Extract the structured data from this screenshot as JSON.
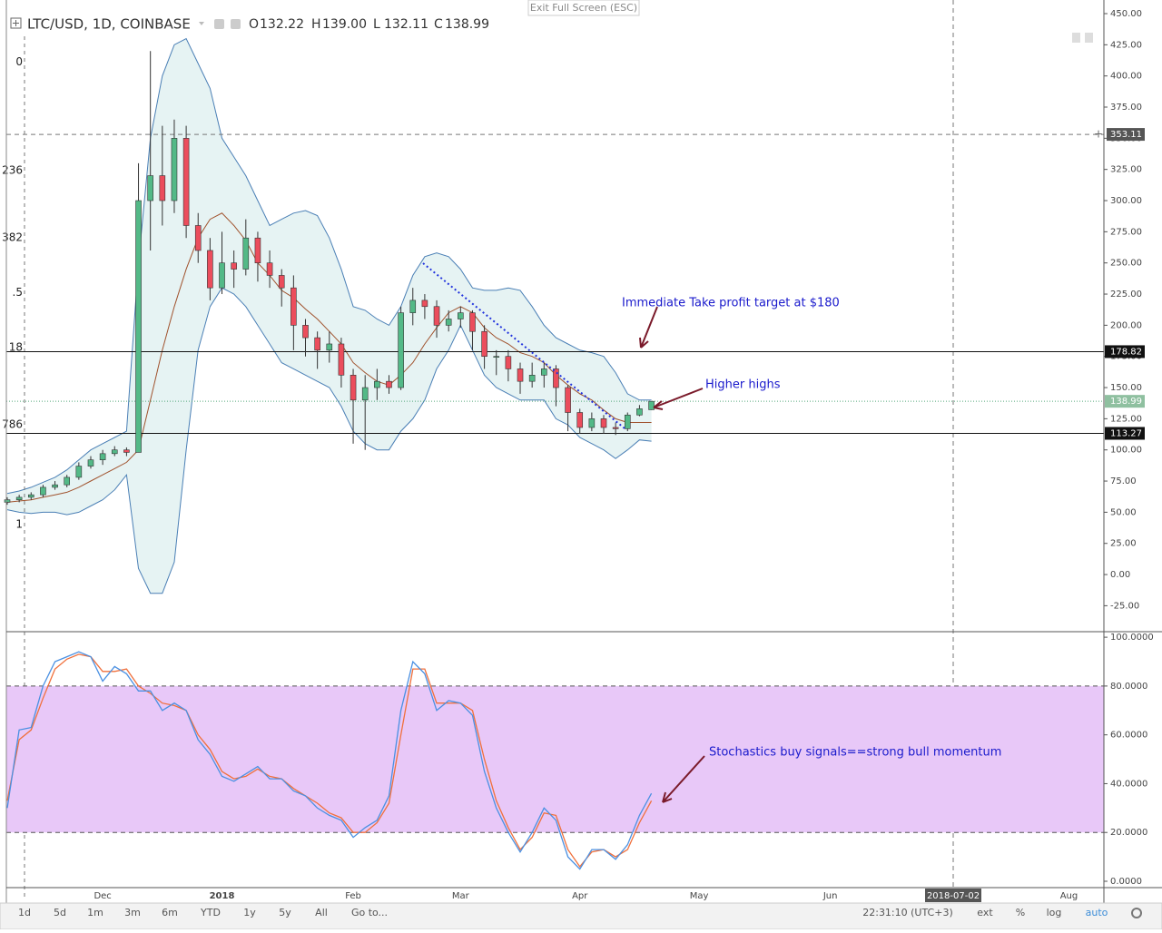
{
  "ui": {
    "exit_full_screen": "Exit Full Screen (ESC)",
    "symbol": "LTC/USD, 1D, COINBASE",
    "ohlc": [
      {
        "label": "O",
        "text": "132.22"
      },
      {
        "label": "H",
        "text": "139.00"
      },
      {
        "label": "L",
        "text": "132.11"
      },
      {
        "label": "C",
        "text": "138.99"
      }
    ],
    "range_buttons": [
      "1d",
      "5d",
      "1m",
      "3m",
      "6m",
      "YTD",
      "1y",
      "5y",
      "All",
      "Go to..."
    ],
    "clock": "22:31:10 (UTC+3)",
    "scale_buttons": [
      "ext",
      "%",
      "log",
      "auto"
    ]
  },
  "chart_data": [
    {
      "type": "candlestick",
      "categories": [
        null,
        null,
        null,
        null,
        null,
        null,
        null,
        null,
        "Dec",
        null,
        null,
        null,
        null,
        null,
        null,
        null,
        null,
        null,
        "2018",
        null,
        null,
        null,
        null,
        null,
        null,
        null,
        null,
        null,
        null,
        "Feb",
        null,
        null,
        null,
        null,
        null,
        null,
        null,
        null,
        "Mar",
        null,
        null,
        null,
        null,
        null,
        null,
        null,
        null,
        null,
        "Apr",
        null,
        null,
        null,
        null,
        null,
        null
      ],
      "future_months": [
        "May",
        "Jun",
        "Aug"
      ],
      "crosshair_date": "2018-07-02",
      "open": [
        58,
        60,
        62,
        64,
        70,
        72,
        78,
        87,
        92,
        97,
        100,
        98,
        300,
        320,
        300,
        350,
        280,
        260,
        230,
        250,
        245,
        270,
        250,
        240,
        230,
        200,
        190,
        180,
        185,
        160,
        140,
        150,
        155,
        150,
        210,
        220,
        215,
        200,
        205,
        210,
        195,
        175,
        175,
        165,
        155,
        160,
        165,
        150,
        130,
        118,
        125,
        118,
        117,
        128,
        132.22
      ],
      "high": [
        62,
        64,
        66,
        72,
        75,
        80,
        90,
        95,
        100,
        103,
        102,
        330,
        420,
        360,
        365,
        360,
        290,
        270,
        275,
        260,
        285,
        275,
        260,
        245,
        240,
        205,
        195,
        195,
        190,
        165,
        160,
        165,
        160,
        215,
        230,
        225,
        220,
        212,
        215,
        212,
        200,
        180,
        180,
        170,
        170,
        170,
        168,
        152,
        133,
        130,
        128,
        122,
        130,
        136,
        139
      ],
      "low": [
        56,
        58,
        60,
        62,
        68,
        70,
        76,
        85,
        88,
        95,
        95,
        98,
        260,
        280,
        290,
        270,
        250,
        220,
        225,
        230,
        240,
        235,
        230,
        215,
        180,
        175,
        165,
        170,
        150,
        105,
        100,
        140,
        145,
        148,
        200,
        205,
        190,
        195,
        198,
        180,
        165,
        160,
        155,
        145,
        150,
        150,
        135,
        115,
        113,
        115,
        113,
        112,
        115,
        127,
        132.11
      ],
      "close": [
        60,
        62,
        64,
        70,
        72,
        78,
        87,
        92,
        97,
        100,
        98,
        300,
        320,
        300,
        350,
        280,
        260,
        230,
        250,
        245,
        270,
        250,
        240,
        230,
        200,
        190,
        180,
        185,
        160,
        140,
        150,
        155,
        150,
        210,
        220,
        215,
        200,
        205,
        210,
        195,
        175,
        175,
        165,
        155,
        160,
        165,
        150,
        130,
        118,
        125,
        118,
        117,
        128,
        133,
        138.99
      ],
      "up_color": "#53b987",
      "down_color": "#eb4d5c",
      "bands": {
        "upper": [
          65,
          67,
          70,
          74,
          78,
          84,
          92,
          100,
          105,
          110,
          115,
          250,
          350,
          400,
          425,
          430,
          410,
          390,
          350,
          335,
          320,
          300,
          280,
          285,
          290,
          292,
          288,
          270,
          245,
          215,
          212,
          205,
          200,
          215,
          240,
          255,
          258,
          255,
          245,
          230,
          228,
          228,
          230,
          228,
          215,
          200,
          190,
          185,
          180,
          178,
          175,
          162,
          145,
          140,
          140
        ],
        "middle": [
          58,
          59,
          60,
          62,
          64,
          66,
          70,
          75,
          80,
          85,
          90,
          100,
          140,
          180,
          215,
          245,
          270,
          285,
          290,
          280,
          268,
          250,
          240,
          228,
          222,
          213,
          205,
          195,
          185,
          170,
          162,
          155,
          152,
          160,
          170,
          185,
          198,
          210,
          215,
          210,
          198,
          190,
          185,
          178,
          175,
          170,
          160,
          152,
          145,
          140,
          132,
          125,
          122,
          122,
          122
        ],
        "lower": [
          52,
          50,
          49,
          50,
          50,
          48,
          50,
          55,
          60,
          68,
          80,
          5,
          -15,
          -15,
          10,
          100,
          180,
          215,
          230,
          225,
          215,
          200,
          185,
          170,
          165,
          160,
          155,
          150,
          135,
          115,
          105,
          100,
          100,
          115,
          125,
          140,
          165,
          180,
          200,
          180,
          160,
          150,
          145,
          140,
          140,
          140,
          125,
          120,
          110,
          105,
          100,
          93,
          100,
          108,
          107
        ],
        "color": "#4a7fb5",
        "middle_color": "#a0522d",
        "fill": "#e6f3f3"
      },
      "price_lines": [
        178.82,
        113.27
      ],
      "crosshair_price": 353.11,
      "fib_levels": [
        {
          "label": "0",
          "price": 411
        },
        {
          "label": "236",
          "price": 324
        },
        {
          "label": "382",
          "price": 270
        },
        {
          "label": ".5",
          "price": 226
        },
        {
          "label": "18",
          "price": 182
        },
        {
          "label": "786",
          "price": 120
        },
        {
          "label": "1",
          "price": 40
        }
      ],
      "annotations": [
        "Immediate Take profit target at $180",
        "Higher highs"
      ],
      "ylim": [
        -45.1,
        455.1
      ],
      "yticks": [
        {
          "value": 450,
          "label": "450.00"
        },
        {
          "value": 425,
          "label": "425.00"
        },
        {
          "value": 400,
          "label": "400.00"
        },
        {
          "value": 375,
          "label": "375.00"
        },
        {
          "value": 350,
          "label": "350.00"
        },
        {
          "value": 325,
          "label": "325.00"
        },
        {
          "value": 300,
          "label": "300.00"
        },
        {
          "value": 275,
          "label": "275.00"
        },
        {
          "value": 250,
          "label": "250.00"
        },
        {
          "value": 225,
          "label": "225.00"
        },
        {
          "value": 200,
          "label": "200.00"
        },
        {
          "value": 175,
          "label": "175.00"
        },
        {
          "value": 150,
          "label": "150.00"
        },
        {
          "value": 125,
          "label": "125.00"
        },
        {
          "value": 100,
          "label": "100.00"
        },
        {
          "value": 75,
          "label": "75.00"
        },
        {
          "value": 50,
          "label": "50.00"
        },
        {
          "value": 25,
          "label": "25.00"
        },
        {
          "value": 0,
          "label": "0.00"
        },
        {
          "value": -25,
          "label": "-25.00"
        }
      ]
    },
    {
      "type": "line",
      "series": [
        {
          "color": "#4a90e2",
          "values": [
            30,
            62,
            63,
            80,
            90,
            92,
            94,
            92,
            82,
            88,
            85,
            78,
            78,
            70,
            73,
            70,
            58,
            52,
            43,
            41,
            44,
            47,
            42,
            42,
            37,
            35,
            30,
            27,
            25,
            18,
            22,
            25,
            35,
            70,
            90,
            85,
            70,
            74,
            73,
            68,
            45,
            30,
            20,
            12,
            20,
            30,
            25,
            10,
            5,
            13,
            13,
            9,
            15,
            27,
            36
          ]
        },
        {
          "color": "#f0703c",
          "values": [
            33,
            58,
            62,
            75,
            87,
            91,
            93,
            92,
            86,
            86,
            87,
            80,
            77,
            73,
            72,
            70,
            60,
            54,
            45,
            42,
            43,
            46,
            43,
            42,
            38,
            35,
            32,
            28,
            26,
            20,
            20,
            24,
            32,
            60,
            87,
            87,
            73,
            73,
            73,
            70,
            50,
            33,
            22,
            13,
            18,
            28,
            27,
            13,
            6,
            12,
            13,
            10,
            13,
            24,
            33
          ]
        }
      ],
      "band": [
        20,
        80
      ],
      "band_color": "#e8c8f8",
      "annotations": [
        "Stochastics buy signals==strong bull momentum"
      ],
      "ylim": [
        -2.6,
        101.9
      ],
      "yticks": [
        {
          "value": 100,
          "label": "100.0000"
        },
        {
          "value": 80,
          "label": "80.0000"
        },
        {
          "value": 60,
          "label": "60.0000"
        },
        {
          "value": 40,
          "label": "40.0000"
        },
        {
          "value": 20,
          "label": "20.0000"
        },
        {
          "value": 0,
          "label": "0.0000"
        }
      ]
    }
  ]
}
